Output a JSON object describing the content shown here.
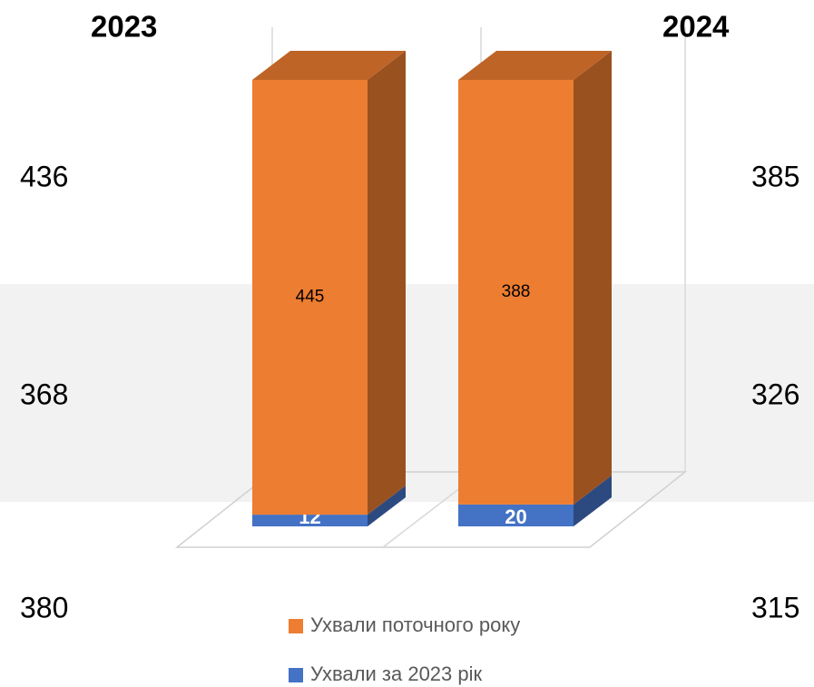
{
  "side_table": {
    "left": {
      "header": "2023",
      "values": [
        436,
        368,
        380
      ]
    },
    "right": {
      "header": "2024",
      "values": [
        385,
        326,
        315
      ]
    }
  },
  "chart_data": {
    "type": "bar",
    "stacking": "percent",
    "categories": [
      null,
      null
    ],
    "series": [
      {
        "name": "Ухвали за 2023 рік",
        "color": "#4472c4",
        "values": [
          12,
          20
        ]
      },
      {
        "name": "Ухвали поточного року",
        "color": "#ed7d31",
        "values": [
          445,
          388
        ]
      }
    ],
    "legend": "bottom"
  }
}
